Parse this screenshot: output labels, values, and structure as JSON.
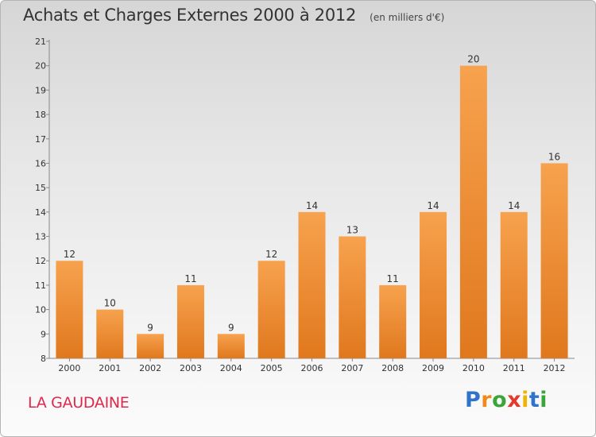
{
  "chart_data": {
    "type": "bar",
    "title": "Achats et Charges Externes 2000 à 2012",
    "unit": "(en milliers d'€)",
    "categories": [
      "2000",
      "2001",
      "2002",
      "2003",
      "2004",
      "2005",
      "2006",
      "2007",
      "2008",
      "2009",
      "2010",
      "2011",
      "2012"
    ],
    "values": [
      12,
      10,
      9,
      11,
      9,
      12,
      14,
      13,
      11,
      14,
      20,
      14,
      16
    ],
    "ylim": [
      8,
      21
    ],
    "yticks": [
      8,
      9,
      10,
      11,
      12,
      13,
      14,
      15,
      16,
      17,
      18,
      19,
      20,
      21
    ],
    "xlabel": "",
    "ylabel": "",
    "grid": false,
    "colors": {
      "bar_top": "#f7a24e",
      "bar_bottom": "#e0781d",
      "axis": "#888888"
    }
  },
  "commune": "LA GAUDAINE",
  "brand": {
    "letters": [
      "P",
      "r",
      "o",
      "x",
      "i",
      "t",
      "i"
    ],
    "colors": [
      "#2f74c8",
      "#ef8a1d",
      "#3aa63a",
      "#e23a2e",
      "#f0b400",
      "#2f74c8",
      "#3aa63a"
    ]
  }
}
